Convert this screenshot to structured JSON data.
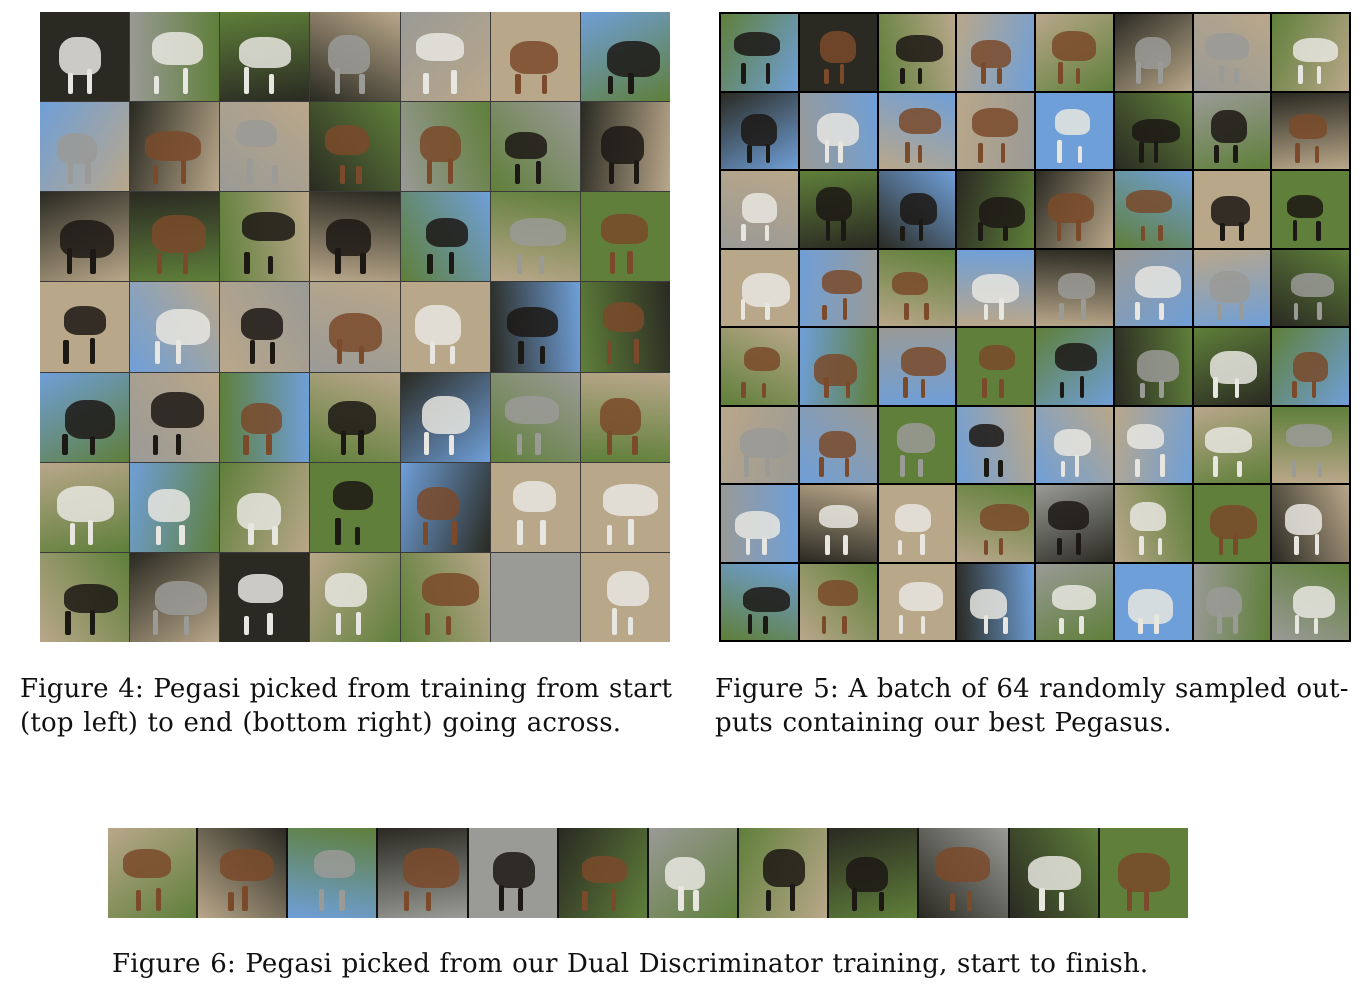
{
  "figure4": {
    "caption_line1": "Figure 4: Pegasi picked from training from start",
    "caption_line2": "(top left) to end (bottom right) going across.",
    "rows": 7,
    "cols": 7
  },
  "figure5": {
    "caption_line1": "Figure 5: A batch of 64 randomly sampled out-",
    "caption_line2": "puts containing our best Pegasus.",
    "rows": 8,
    "cols": 8
  },
  "figure6": {
    "caption": "Figure 6: Pegasi picked from our Dual Discriminator training, start to finish.",
    "count": 12
  },
  "palette": {
    "grass": "#5f7f3a",
    "sky": "#6f9fd8",
    "sand": "#b9a78a",
    "brown": "#7a4a2a",
    "white": "#e8e6e0",
    "black": "#1c1814",
    "gray": "#9a9a96",
    "dark_bg": "#2a2a22"
  }
}
